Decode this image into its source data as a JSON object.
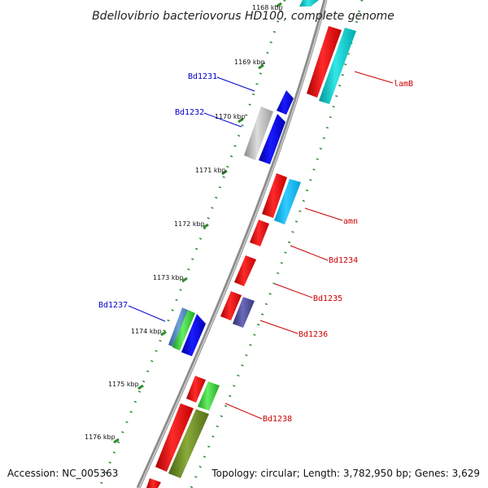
{
  "title": "Bdellovibrio bacteriovorus HD100, complete genome",
  "footer": {
    "accession": "Accession: NC_005363",
    "summary": "Topology: circular; Length: 3,782,950 bp; Genes: 3,629"
  },
  "ticks": [
    "1168 kbp",
    "1169 kbp",
    "1170 kbp",
    "1171 kbp",
    "1172 kbp",
    "1173 kbp",
    "1174 kbp",
    "1175 kbp",
    "1176 kbp"
  ],
  "gene_labels": [
    {
      "id": "lamb",
      "text": "lamB",
      "strand": "forward",
      "color": "#cc0000"
    },
    {
      "id": "amn",
      "text": "amn",
      "strand": "forward",
      "color": "#cc0000"
    },
    {
      "id": "bd1234",
      "text": "Bd1234",
      "strand": "forward",
      "color": "#cc0000"
    },
    {
      "id": "bd1235",
      "text": "Bd1235",
      "strand": "forward",
      "color": "#cc0000"
    },
    {
      "id": "bd1236",
      "text": "Bd1236",
      "strand": "forward",
      "color": "#cc0000"
    },
    {
      "id": "bd1238",
      "text": "Bd1238",
      "strand": "forward",
      "color": "#cc0000"
    },
    {
      "id": "bd1231",
      "text": "Bd1231",
      "strand": "reverse",
      "color": "#0000cc"
    },
    {
      "id": "bd1232",
      "text": "Bd1232",
      "strand": "reverse",
      "color": "#0000cc"
    },
    {
      "id": "bd1237",
      "text": "Bd1237",
      "strand": "reverse",
      "color": "#0000cc"
    }
  ],
  "colors": {
    "backbone": "#8c8c8c",
    "forward_gene": "#ff0000",
    "reverse_gene": "#0000ff",
    "trna": "#00cccc",
    "rrna": "#00bfff",
    "other": "#b0b0b0",
    "olive": "#6b8e23",
    "green": "#33cc33",
    "slate": "#4b4b9b",
    "steel": "#4682b4",
    "tick_mark": "#2e8b2e"
  }
}
